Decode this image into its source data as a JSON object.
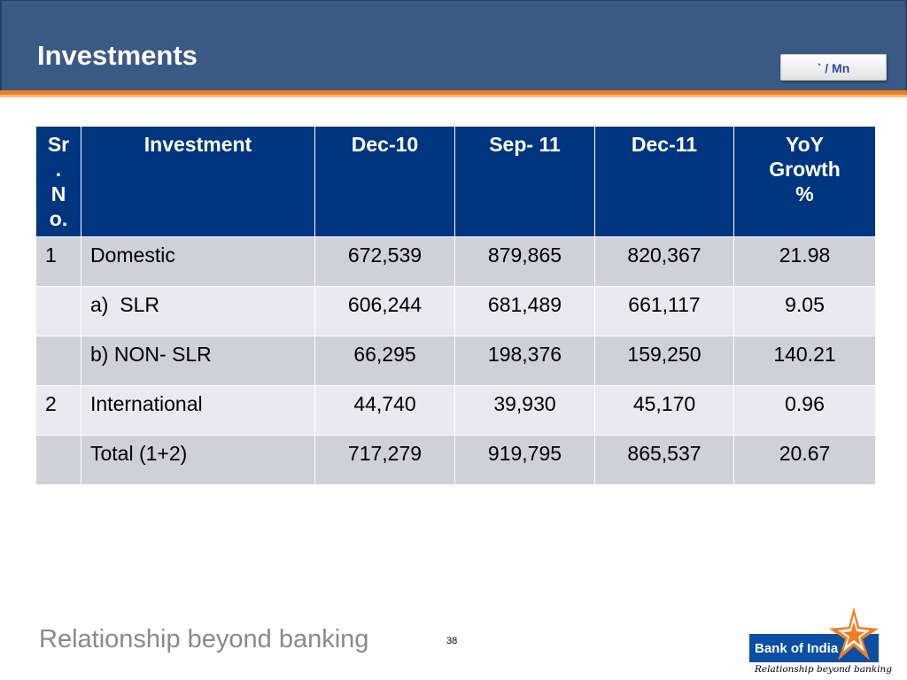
{
  "header": {
    "title": "Investments",
    "unit": "` / Mn"
  },
  "table": {
    "columns": [
      "Sr\n.\nN\no.",
      "Investment",
      "Dec-10",
      "Sep- 11",
      "Dec-11",
      "YoY\nGrowth\n%"
    ],
    "rows": [
      {
        "sr": "1",
        "investment": "Domestic",
        "dec10": "672,539",
        "sep11": "879,865",
        "dec11": "820,367",
        "yoy": "21.98"
      },
      {
        "sr": "",
        "investment": "a)  SLR",
        "dec10": "606,244",
        "sep11": "681,489",
        "dec11": "661,117",
        "yoy": "9.05"
      },
      {
        "sr": "",
        "investment": "b) NON- SLR",
        "dec10": "66,295",
        "sep11": "198,376",
        "dec11": "159,250",
        "yoy": "140.21"
      },
      {
        "sr": "2",
        "investment": "International",
        "dec10": "44,740",
        "sep11": "39,930",
        "dec11": "45,170",
        "yoy": "0.96"
      },
      {
        "sr": "",
        "investment": "Total (1+2)",
        "dec10": "717,279",
        "sep11": "919,795",
        "dec11": "865,537",
        "yoy": "20.67"
      }
    ]
  },
  "footer": {
    "tagline": "Relationship beyond banking",
    "page_number": "38",
    "logo_name": "Bank of India",
    "logo_tagline": "Relationship beyond banking"
  },
  "colors": {
    "header_bg": "#3a5a85",
    "accent_orange": "#f07d1e",
    "table_header_bg": "#003580",
    "row_dark": "#cfd0d8",
    "row_light": "#e9e9ef"
  }
}
